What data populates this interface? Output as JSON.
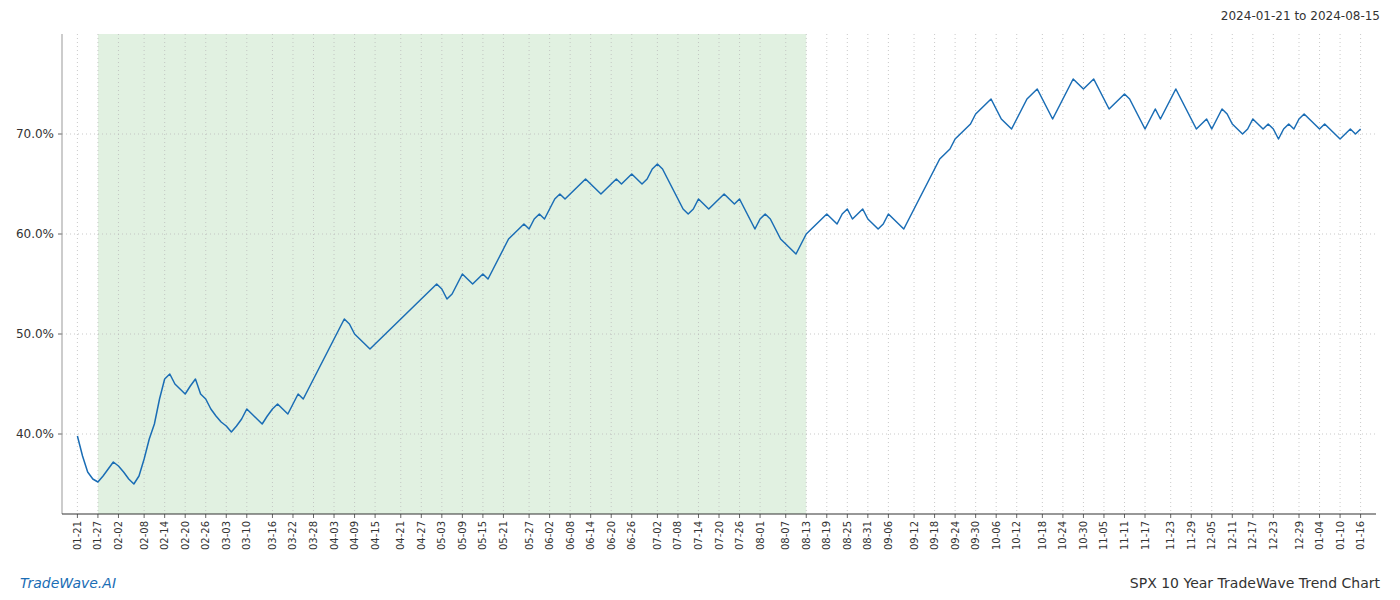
{
  "chart_data": {
    "type": "line",
    "title": "SPX 10 Year TradeWave Trend Chart",
    "subtitle": "2024-01-21 to 2024-08-15",
    "annotations": [
      "TradeWave.AI"
    ],
    "color": "#1a6db5",
    "grid": true,
    "ylim": [
      32.0,
      80.0
    ],
    "yticks": [
      {
        "value": 40.0,
        "label": "40.0%"
      },
      {
        "value": 50.0,
        "label": "50.0%"
      },
      {
        "value": 60.0,
        "label": "60.0%"
      },
      {
        "value": 70.0,
        "label": "70.0%"
      }
    ],
    "band": {
      "start": "01-27",
      "end": "08-13",
      "color": "#c8e6c8"
    },
    "categories": [
      "01-21",
      null,
      null,
      null,
      "01-27",
      null,
      null,
      null,
      "02-02",
      null,
      null,
      null,
      null,
      "02-08",
      null,
      null,
      null,
      "02-14",
      null,
      null,
      null,
      "02-20",
      null,
      null,
      null,
      "02-26",
      null,
      null,
      null,
      "03-03",
      null,
      null,
      null,
      "03-10",
      null,
      null,
      null,
      null,
      "03-16",
      null,
      null,
      null,
      "03-22",
      null,
      null,
      null,
      "03-28",
      null,
      null,
      null,
      "04-03",
      null,
      null,
      null,
      "04-09",
      null,
      null,
      null,
      "04-15",
      null,
      null,
      null,
      null,
      "04-21",
      null,
      null,
      null,
      "04-27",
      null,
      null,
      null,
      "05-03",
      null,
      null,
      null,
      "05-09",
      null,
      null,
      null,
      "05-15",
      null,
      null,
      null,
      "05-21",
      null,
      null,
      null,
      null,
      "05-27",
      null,
      null,
      null,
      "06-02",
      null,
      null,
      null,
      "06-08",
      null,
      null,
      null,
      "06-14",
      null,
      null,
      null,
      "06-20",
      null,
      null,
      null,
      "06-26",
      null,
      null,
      null,
      null,
      "07-02",
      null,
      null,
      null,
      "07-08",
      null,
      null,
      null,
      "07-14",
      null,
      null,
      null,
      "07-20",
      null,
      null,
      null,
      "07-26",
      null,
      null,
      null,
      "08-01",
      null,
      null,
      null,
      null,
      "08-07",
      null,
      null,
      null,
      "08-13",
      null,
      null,
      null,
      "08-19",
      null,
      null,
      null,
      "08-25",
      null,
      null,
      null,
      "08-31",
      null,
      null,
      null,
      "09-06",
      null,
      null,
      null,
      null,
      "09-12",
      null,
      null,
      null,
      "09-18",
      null,
      null,
      null,
      "09-24",
      null,
      null,
      null,
      "09-30",
      null,
      null,
      null,
      "10-06",
      null,
      null,
      null,
      "10-12",
      null,
      null,
      null,
      null,
      "10-18",
      null,
      null,
      null,
      "10-24",
      null,
      null,
      null,
      "10-30",
      null,
      null,
      null,
      "11-05",
      null,
      null,
      null,
      "11-11",
      null,
      null,
      null,
      "11-17",
      null,
      null,
      null,
      null,
      "11-23",
      null,
      null,
      null,
      "11-29",
      null,
      null,
      null,
      "12-05",
      null,
      null,
      null,
      "12-11",
      null,
      null,
      null,
      "12-17",
      null,
      null,
      null,
      "12-23",
      null,
      null,
      null,
      null,
      "12-29",
      null,
      null,
      null,
      "01-04",
      null,
      null,
      null,
      "01-10",
      null,
      null,
      null,
      "01-16"
    ],
    "values": [
      39.8,
      37.8,
      36.2,
      35.5,
      35.2,
      35.8,
      36.5,
      37.2,
      36.8,
      36.2,
      35.5,
      35.0,
      35.8,
      37.5,
      39.5,
      41.0,
      43.5,
      45.5,
      46.0,
      45.0,
      44.5,
      44.0,
      44.8,
      45.5,
      44.0,
      43.5,
      42.5,
      41.8,
      41.2,
      40.8,
      40.2,
      40.8,
      41.5,
      42.5,
      42.0,
      41.5,
      41.0,
      41.8,
      42.5,
      43.0,
      42.5,
      42.0,
      43.0,
      44.0,
      43.5,
      44.5,
      45.5,
      46.5,
      47.5,
      48.5,
      49.5,
      50.5,
      51.5,
      51.0,
      50.0,
      49.5,
      49.0,
      48.5,
      49.0,
      49.5,
      50.0,
      50.5,
      51.0,
      51.5,
      52.0,
      52.5,
      53.0,
      53.5,
      54.0,
      54.5,
      55.0,
      54.5,
      53.5,
      54.0,
      55.0,
      56.0,
      55.5,
      55.0,
      55.5,
      56.0,
      55.5,
      56.5,
      57.5,
      58.5,
      59.5,
      60.0,
      60.5,
      61.0,
      60.5,
      61.5,
      62.0,
      61.5,
      62.5,
      63.5,
      64.0,
      63.5,
      64.0,
      64.5,
      65.0,
      65.5,
      65.0,
      64.5,
      64.0,
      64.5,
      65.0,
      65.5,
      65.0,
      65.5,
      66.0,
      65.5,
      65.0,
      65.5,
      66.5,
      67.0,
      66.5,
      65.5,
      64.5,
      63.5,
      62.5,
      62.0,
      62.5,
      63.5,
      63.0,
      62.5,
      63.0,
      63.5,
      64.0,
      63.5,
      63.0,
      63.5,
      62.5,
      61.5,
      60.5,
      61.5,
      62.0,
      61.5,
      60.5,
      59.5,
      59.0,
      58.5,
      58.0,
      59.0,
      60.0,
      60.5,
      61.0,
      61.5,
      62.0,
      61.5,
      61.0,
      62.0,
      62.5,
      61.5,
      62.0,
      62.5,
      61.5,
      61.0,
      60.5,
      61.0,
      62.0,
      61.5,
      61.0,
      60.5,
      61.5,
      62.5,
      63.5,
      64.5,
      65.5,
      66.5,
      67.5,
      68.0,
      68.5,
      69.5,
      70.0,
      70.5,
      71.0,
      72.0,
      72.5,
      73.0,
      73.5,
      72.5,
      71.5,
      71.0,
      70.5,
      71.5,
      72.5,
      73.5,
      74.0,
      74.5,
      73.5,
      72.5,
      71.5,
      72.5,
      73.5,
      74.5,
      75.5,
      75.0,
      74.5,
      75.0,
      75.5,
      74.5,
      73.5,
      72.5,
      73.0,
      73.5,
      74.0,
      73.5,
      72.5,
      71.5,
      70.5,
      71.5,
      72.5,
      71.5,
      72.5,
      73.5,
      74.5,
      73.5,
      72.5,
      71.5,
      70.5,
      71.0,
      71.5,
      70.5,
      71.5,
      72.5,
      72.0,
      71.0,
      70.5,
      70.0,
      70.5,
      71.5,
      71.0,
      70.5,
      71.0,
      70.5,
      69.5,
      70.5,
      71.0,
      70.5,
      71.5,
      72.0,
      71.5,
      71.0,
      70.5,
      71.0,
      70.5,
      70.0,
      69.5,
      70.0,
      70.5,
      70.0,
      70.5
    ]
  }
}
